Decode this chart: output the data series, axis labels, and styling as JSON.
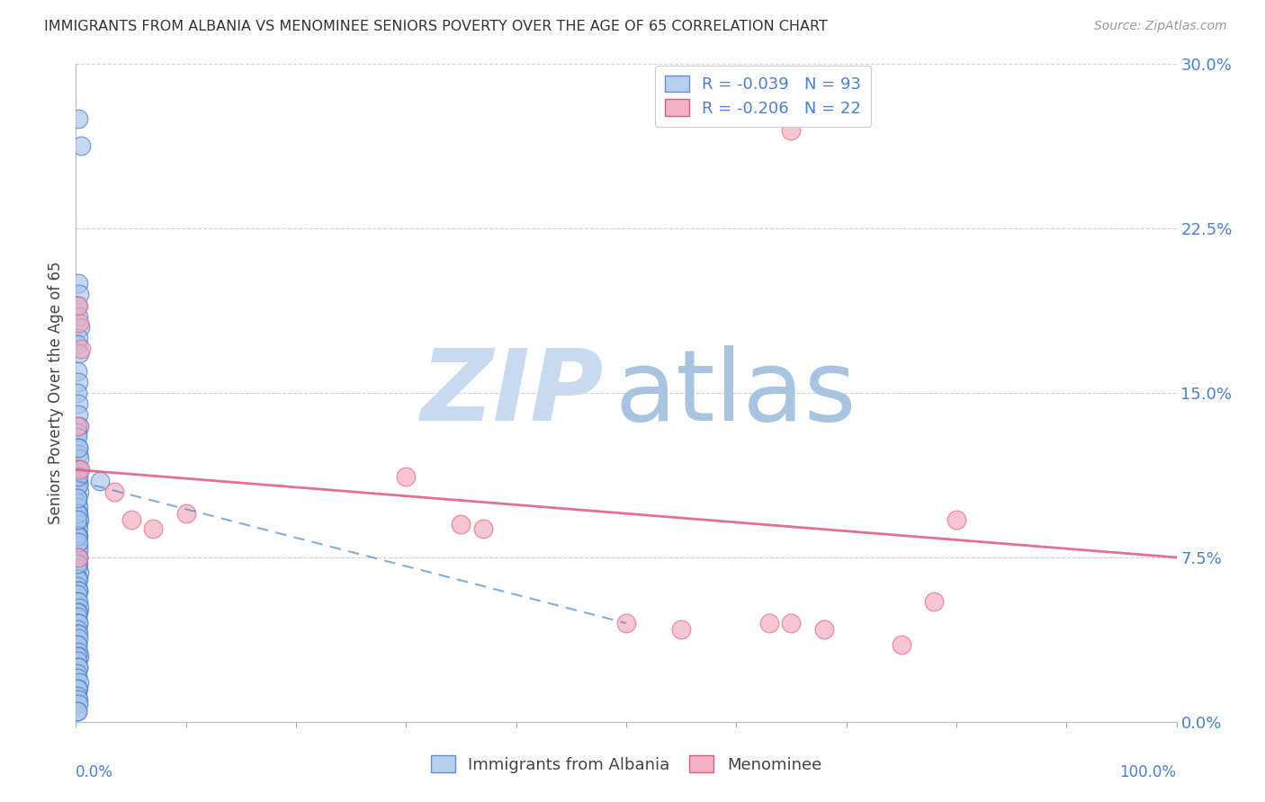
{
  "title": "IMMIGRANTS FROM ALBANIA VS MENOMINEE SENIORS POVERTY OVER THE AGE OF 65 CORRELATION CHART",
  "source": "Source: ZipAtlas.com",
  "ylabel": "Seniors Poverty Over the Age of 65",
  "ytick_values": [
    0.0,
    7.5,
    15.0,
    22.5,
    30.0
  ],
  "xlim": [
    0,
    100
  ],
  "ylim": [
    0,
    30
  ],
  "blue_color": "#a8c4e8",
  "blue_edge": "#4a7ec8",
  "pink_color": "#f4a8bc",
  "pink_edge": "#e06888",
  "blue_scatter_x": [
    0.25,
    0.45,
    0.2,
    0.3,
    0.15,
    0.2,
    0.35,
    0.25,
    0.1,
    0.3,
    0.15,
    0.2,
    0.1,
    0.25,
    0.2,
    0.3,
    0.1,
    0.15,
    0.2,
    0.25,
    0.3,
    0.15,
    0.1,
    0.2,
    0.25,
    0.3,
    0.15,
    0.1,
    0.2,
    0.25,
    0.3,
    0.15,
    0.1,
    0.2,
    0.25,
    0.15,
    0.1,
    0.2,
    0.25,
    0.15,
    0.1,
    0.2,
    0.25,
    0.15,
    0.1,
    0.3,
    0.2,
    0.15,
    0.1,
    0.25,
    0.2,
    0.15,
    0.1,
    0.25,
    0.3,
    0.2,
    0.15,
    0.1,
    0.2,
    0.25,
    0.15,
    0.1,
    0.2,
    0.25,
    0.15,
    0.1,
    0.2,
    0.3,
    0.15,
    0.1,
    0.2,
    0.25,
    0.15,
    0.1,
    0.3,
    0.2,
    0.15,
    0.1,
    0.25,
    0.2,
    0.15,
    0.1,
    0.3,
    0.2,
    0.15,
    0.1,
    0.25,
    0.2,
    0.15,
    0.1,
    0.2,
    0.15,
    2.2
  ],
  "blue_scatter_y": [
    27.5,
    26.3,
    20.0,
    19.5,
    19.0,
    18.5,
    18.0,
    17.5,
    17.2,
    16.8,
    16.0,
    15.5,
    15.0,
    14.5,
    14.0,
    13.5,
    13.2,
    13.0,
    12.5,
    12.2,
    12.0,
    11.5,
    11.2,
    11.0,
    10.8,
    10.5,
    10.2,
    10.0,
    9.8,
    9.5,
    9.2,
    9.0,
    9.0,
    8.8,
    8.5,
    8.5,
    8.2,
    8.0,
    7.8,
    7.5,
    7.5,
    7.5,
    7.2,
    7.0,
    7.0,
    6.8,
    6.5,
    6.5,
    6.2,
    6.0,
    6.0,
    5.8,
    5.5,
    5.5,
    5.2,
    5.0,
    5.0,
    4.8,
    4.5,
    4.5,
    4.2,
    4.0,
    4.0,
    3.8,
    3.5,
    3.5,
    3.2,
    3.0,
    3.0,
    2.8,
    2.5,
    2.5,
    2.2,
    2.0,
    1.8,
    1.5,
    1.5,
    1.2,
    1.0,
    0.8,
    0.5,
    0.5,
    11.5,
    10.8,
    9.5,
    8.5,
    12.5,
    11.2,
    10.2,
    9.2,
    8.2,
    7.2,
    11.0
  ],
  "pink_scatter_x": [
    0.3,
    0.5,
    0.2,
    0.15,
    0.4,
    3.5,
    5.0,
    7.0,
    10.0,
    30.0,
    35.0,
    37.0,
    50.0,
    55.0,
    63.0,
    65.0,
    68.0,
    75.0,
    78.0,
    80.0,
    65.0,
    0.25
  ],
  "pink_scatter_y": [
    18.2,
    17.0,
    19.0,
    13.5,
    11.5,
    10.5,
    9.2,
    8.8,
    9.5,
    11.2,
    9.0,
    8.8,
    4.5,
    4.2,
    4.5,
    4.5,
    4.2,
    3.5,
    5.5,
    9.2,
    27.0,
    7.5
  ],
  "blue_trend_x": [
    0.0,
    50.0
  ],
  "blue_trend_y": [
    11.0,
    4.5
  ],
  "pink_trend_x": [
    0.0,
    100.0
  ],
  "pink_trend_y": [
    11.5,
    7.5
  ],
  "background_color": "#ffffff",
  "grid_color": "#cccccc",
  "title_color": "#333333",
  "source_color": "#999999",
  "axis_tick_color": "#4a80d0",
  "legend_label_color": "#4a80d0",
  "watermark_zip_color": "#c8daf0",
  "watermark_atlas_color": "#a8c4e0"
}
